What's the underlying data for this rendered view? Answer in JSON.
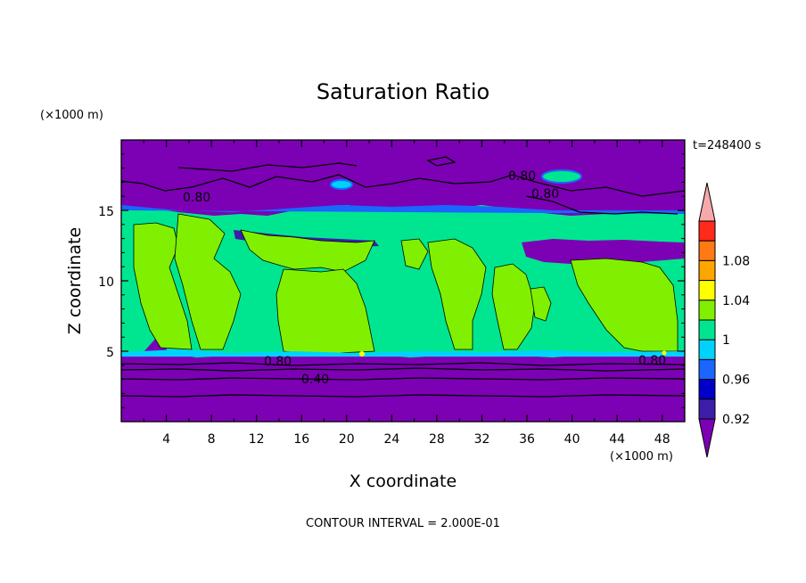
{
  "chart_data": {
    "type": "filled-contour",
    "title": "Saturation Ratio",
    "xlabel": "X coordinate",
    "ylabel": "Z coordinate",
    "x_unit": "(×1000 m)",
    "y_unit": "(×1000 m)",
    "xlim": [
      0,
      50
    ],
    "ylim": [
      0,
      20
    ],
    "x_ticks": [
      "4",
      "8",
      "12",
      "16",
      "20",
      "24",
      "28",
      "32",
      "36",
      "40",
      "44",
      "48"
    ],
    "y_ticks": [
      "5",
      "10",
      "15"
    ],
    "time_label": "t=248400 s",
    "footer": "CONTOUR INTERVAL = 2.000E-01",
    "colorbar": {
      "labels": [
        "1.08",
        "1.04",
        "1",
        "0.96",
        "0.92"
      ],
      "colors": [
        "#f7a9a9",
        "#ff2a1a",
        "#ff7a14",
        "#ffa500",
        "#ffff00",
        "#80f000",
        "#00e690",
        "#00d2ff",
        "#1a66ff",
        "#0000c8",
        "#3c1eaa",
        "#7c00b4"
      ]
    },
    "contour_labels": [
      "0.80",
      "0.80",
      "0.80",
      "0.80",
      "0.40",
      "0.80"
    ],
    "regions": {
      "upper_dry": "#7c00b4",
      "mid_moist": "#00e690",
      "supersat_patches": "#80f000",
      "lower_dry": "#7c00b4"
    }
  }
}
